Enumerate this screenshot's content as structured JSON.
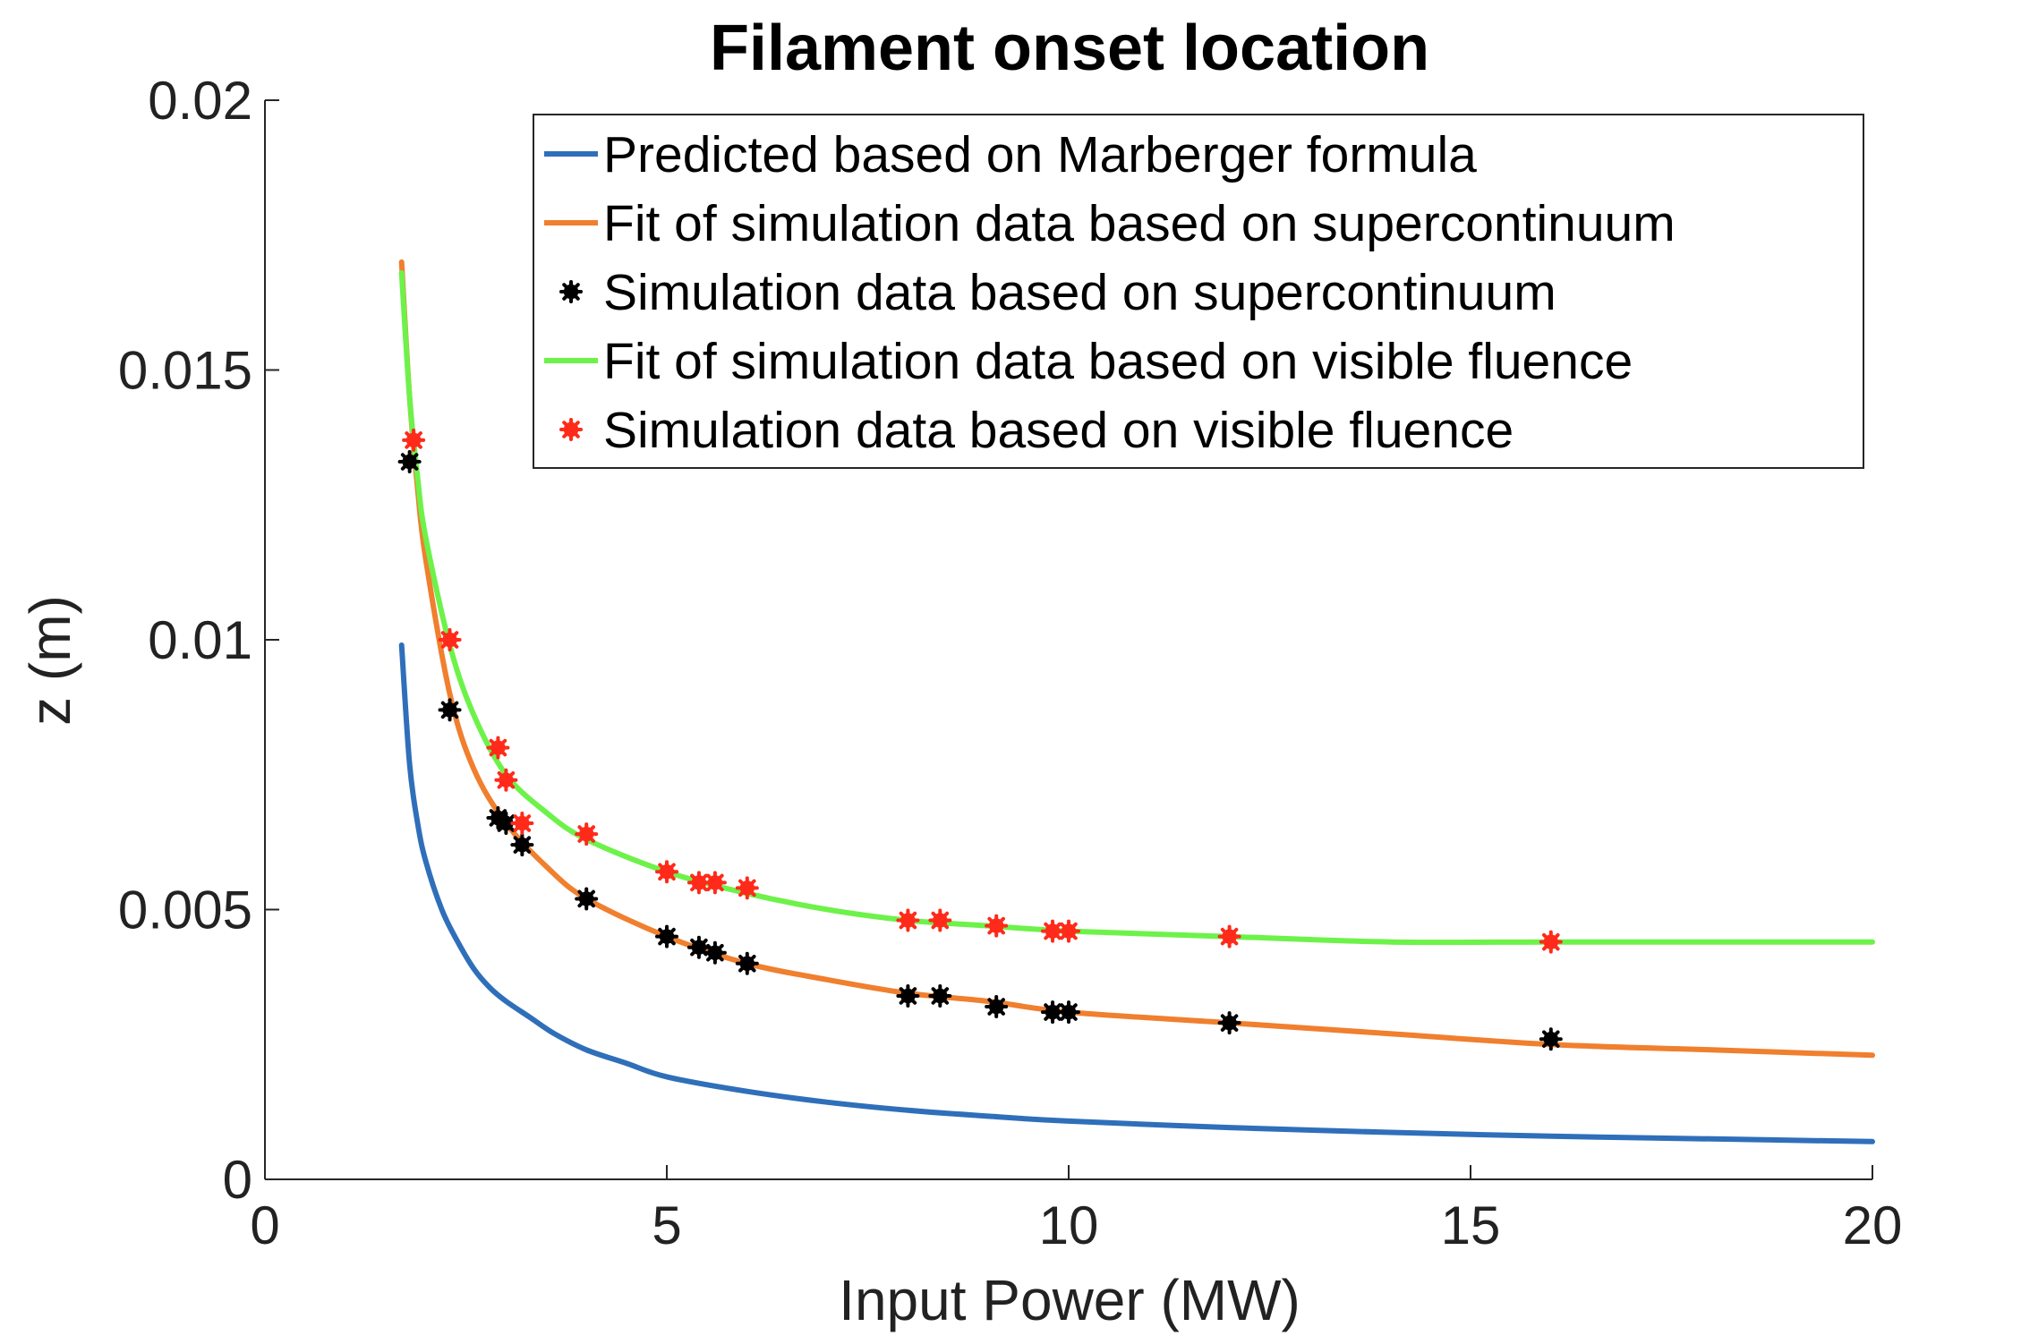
{
  "chart_data": {
    "type": "line",
    "title": "Filament onset location",
    "xlabel": "Input Power (MW)",
    "ylabel": "z (m)",
    "xlim": [
      0,
      20
    ],
    "ylim": [
      0,
      0.02
    ],
    "xticks": [
      "0",
      "5",
      "10",
      "15",
      "20"
    ],
    "yticks": [
      "0",
      "0.005",
      "0.01",
      "0.015",
      "0.02"
    ],
    "grid": false,
    "legend_position": "top-right",
    "series": [
      {
        "name": "Predicted based on Marberger formula",
        "kind": "line",
        "color": "#2f6fba",
        "x": [
          1.7,
          1.8,
          1.9,
          2.0,
          2.2,
          2.4,
          2.6,
          2.8,
          3.0,
          3.3,
          3.6,
          4.0,
          4.5,
          5.0,
          6.0,
          7.0,
          8.0,
          9.0,
          10.0,
          12.0,
          14.0,
          16.0,
          18.0,
          20.0
        ],
        "y": [
          0.0099,
          0.0077,
          0.0066,
          0.0059,
          0.005,
          0.0044,
          0.0039,
          0.00355,
          0.0033,
          0.003,
          0.0027,
          0.0024,
          0.00215,
          0.0019,
          0.00163,
          0.00143,
          0.00128,
          0.00117,
          0.00108,
          0.00096,
          0.00087,
          0.0008,
          0.00075,
          0.0007
        ]
      },
      {
        "name": "Fit of simulation data based on supercontinuum",
        "kind": "line",
        "color": "#f07f2e",
        "x": [
          1.7,
          1.8,
          1.9,
          2.0,
          2.3,
          2.6,
          3.0,
          3.5,
          4.0,
          5.0,
          6.0,
          7.0,
          8.0,
          9.0,
          10.0,
          12.0,
          14.0,
          16.0,
          18.0,
          20.0
        ],
        "y": [
          0.017,
          0.0145,
          0.0128,
          0.0115,
          0.009,
          0.0076,
          0.0066,
          0.0058,
          0.0052,
          0.0045,
          0.004,
          0.0037,
          0.00345,
          0.0033,
          0.0031,
          0.0029,
          0.0027,
          0.0025,
          0.0024,
          0.0023
        ]
      },
      {
        "name": "Simulation data based on supercontinuum",
        "kind": "markers",
        "color": "#000000",
        "x": [
          1.8,
          2.3,
          2.9,
          3.0,
          3.2,
          4.0,
          5.0,
          5.4,
          5.6,
          6.0,
          8.0,
          8.4,
          9.1,
          9.8,
          10.0,
          12.0,
          16.0
        ],
        "y": [
          0.0133,
          0.0087,
          0.0067,
          0.0066,
          0.0062,
          0.0052,
          0.0045,
          0.0043,
          0.0042,
          0.004,
          0.0034,
          0.0034,
          0.0032,
          0.0031,
          0.0031,
          0.0029,
          0.0026
        ]
      },
      {
        "name": "Fit of simulation data based on visible fluence",
        "kind": "line",
        "color": "#6df24a",
        "x": [
          1.7,
          1.8,
          1.9,
          2.0,
          2.3,
          2.6,
          3.0,
          3.5,
          4.0,
          5.0,
          6.0,
          7.0,
          8.0,
          9.0,
          10.0,
          12.0,
          14.0,
          16.0,
          18.0,
          20.0
        ],
        "y": [
          0.0168,
          0.0145,
          0.013,
          0.0119,
          0.0099,
          0.0086,
          0.0075,
          0.0068,
          0.0063,
          0.0057,
          0.0053,
          0.005,
          0.0048,
          0.0047,
          0.0046,
          0.0045,
          0.0044,
          0.0044,
          0.0044,
          0.0044
        ]
      },
      {
        "name": "Simulation data based on visible fluence",
        "kind": "markers",
        "color": "#ff2a1a",
        "x": [
          1.85,
          2.3,
          2.9,
          3.0,
          3.2,
          4.0,
          5.0,
          5.4,
          5.6,
          6.0,
          8.0,
          8.4,
          9.1,
          9.8,
          10.0,
          12.0,
          16.0
        ],
        "y": [
          0.0137,
          0.01,
          0.008,
          0.0074,
          0.0066,
          0.0064,
          0.0057,
          0.0055,
          0.0055,
          0.0054,
          0.0048,
          0.0048,
          0.0047,
          0.0046,
          0.0046,
          0.0045,
          0.0044
        ]
      }
    ]
  }
}
